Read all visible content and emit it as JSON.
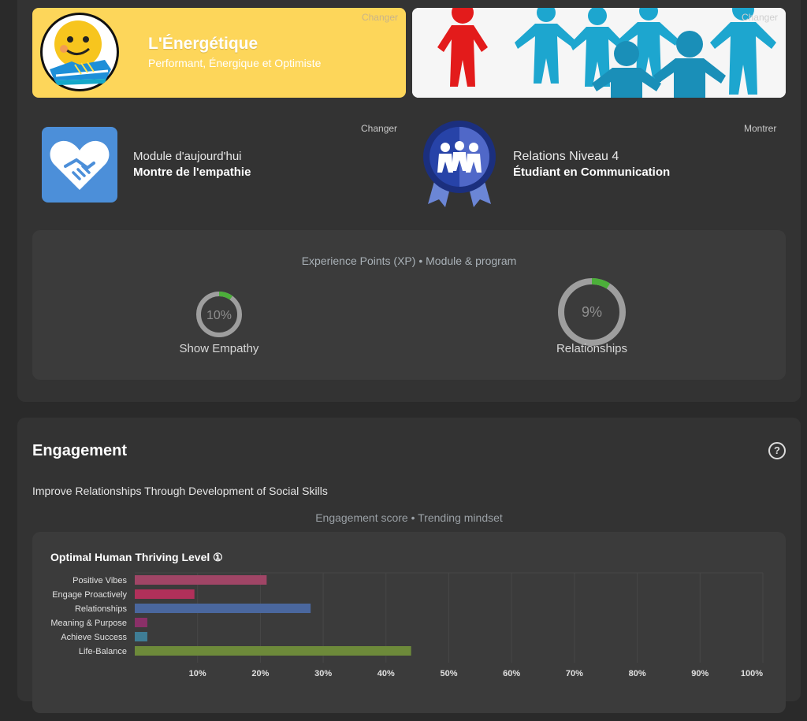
{
  "persona": {
    "title": "L'Énergétique",
    "subtitle": "Performant, Énergique et Optimiste",
    "change_label": "Changer"
  },
  "team": {
    "change_label": "Changer"
  },
  "module": {
    "change_label": "Changer",
    "line1": "Module d'aujourd'hui",
    "line2": "Montre de l'empathie"
  },
  "relations": {
    "show_label": "Montrer",
    "line1": "Relations Niveau 4",
    "line2": "Étudiant en Communication"
  },
  "xp": {
    "heading": "Experience Points (XP) • Module & program",
    "gauges": [
      {
        "label": "Show Empathy",
        "value_text": "10%",
        "value": 10
      },
      {
        "label": "Relationships",
        "value_text": "9%",
        "value": 9
      }
    ]
  },
  "engagement": {
    "title": "Engagement",
    "help_icon": "question-circle-icon",
    "subtitle": "Improve Relationships Through Development of Social Skills",
    "score_label": "Engagement score • Trending mindset"
  },
  "chart_data": {
    "type": "bar",
    "orientation": "horizontal",
    "title": "Optimal Human Thriving Level ①",
    "categories": [
      "Positive Vibes",
      "Engage Proactively",
      "Relationships",
      "Meaning & Purpose",
      "Achieve Success",
      "Life-Balance"
    ],
    "values": [
      21,
      9.5,
      28,
      2,
      2,
      44
    ],
    "colors": [
      "#a04566",
      "#b0305a",
      "#4a679e",
      "#8a3068",
      "#3f7d95",
      "#6d8a3a"
    ],
    "xlim": [
      0,
      100
    ],
    "xticks": [
      "10%",
      "20%",
      "30%",
      "40%",
      "50%",
      "60%",
      "70%",
      "80%",
      "90%",
      "100%"
    ],
    "grid": true
  },
  "colors": {
    "accent_green": "#4caf3a",
    "gauge_track": "#9e9e9e",
    "persona_bg": "#fdd65a",
    "module_icon_bg": "#4c8fd9",
    "badge_blue": "#1f3a93"
  }
}
